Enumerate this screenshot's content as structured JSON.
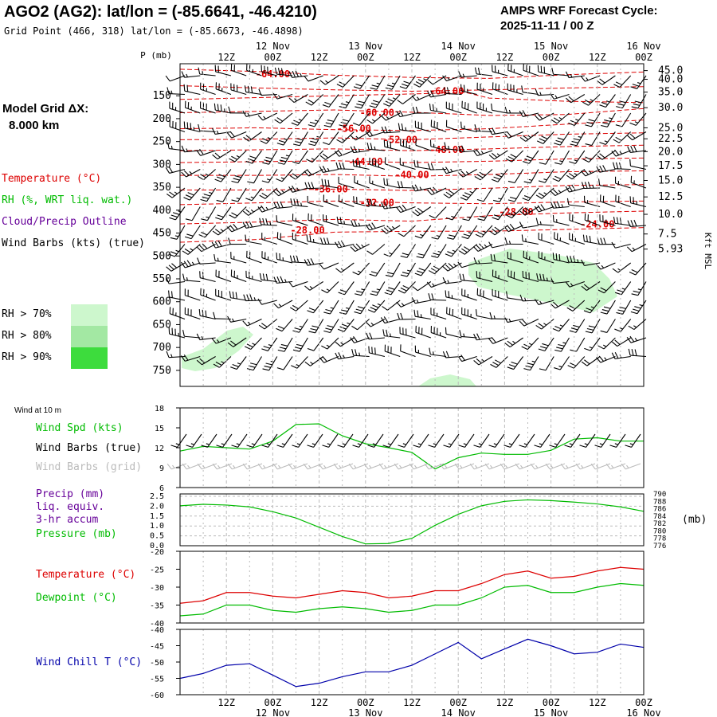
{
  "header": {
    "station": "AGO2 (AG2):  lat/lon = (-85.6641, -46.4210)",
    "grid_point": "Grid Point (466, 318) lat/lon = (-85.6673, -46.4898)",
    "cycle_line1": "AMPS WRF Forecast Cycle:",
    "cycle_line2": "2025-11-11 / 00  Z",
    "model_grid_label": "Model Grid ΔX:",
    "model_grid_value": "8.000 km"
  },
  "legend": {
    "temperature": "Temperature (°C)",
    "rh": "RH (%, WRT liq. wat.)",
    "cloud": "Cloud/Precip Outline",
    "wind_barbs": "Wind Barbs (kts) (true)",
    "rh70": "RH > 70%",
    "rh80": "RH > 80%",
    "rh90": "RH > 90%",
    "rh_colors": [
      "#cdf7cd",
      "#a3e8a3",
      "#3ddc3d"
    ]
  },
  "colors": {
    "temperature": "#dd0000",
    "dewpoint": "#00bb00",
    "wind_speed": "#00bb00",
    "pressure": "#00bb00",
    "precip": "#660099",
    "wind_chill": "#0000aa",
    "grid_barbs": "#bbbbbb",
    "rh_fill": "#cdf7cd"
  },
  "time_axis": {
    "top_dates": [
      "12 Nov",
      "13 Nov",
      "14 Nov",
      "15 Nov",
      "16 Nov"
    ],
    "top_hours": [
      "12Z",
      "00Z",
      "12Z",
      "00Z",
      "12Z",
      "00Z",
      "12Z",
      "00Z",
      "12Z",
      "00Z"
    ],
    "bottom_hours": [
      "12Z",
      "00Z",
      "12Z",
      "00Z",
      "12Z",
      "00Z",
      "12Z",
      "00Z",
      "12Z",
      "00Z"
    ],
    "bottom_dates": [
      "12 Nov",
      "13 Nov",
      "14 Nov",
      "15 Nov",
      "16 Nov"
    ]
  },
  "chart_data": [
    {
      "type": "heatmap",
      "panel": "cross-section",
      "ylabel": "P (mb)",
      "right_axis_label": "Kft MSL",
      "pressure_levels": [
        150,
        200,
        250,
        300,
        350,
        400,
        450,
        500,
        550,
        600,
        650,
        700,
        750
      ],
      "height_ticks": [
        "45.0",
        "40.0",
        "35.0",
        "30.0",
        "25.0",
        "22.5",
        "20.0",
        "17.5",
        "15.0",
        "12.5",
        "10.0",
        "7.5",
        "5.93"
      ],
      "height_tick_pressures": [
        95,
        114,
        142,
        176,
        220,
        244,
        272,
        303,
        335,
        371,
        409,
        452,
        485
      ],
      "ylim": [
        80,
        785
      ],
      "xlim_hours": [
        0,
        120
      ],
      "temperature_contours": [
        {
          "label": "-64.00",
          "x": 24,
          "p": 103
        },
        {
          "label": "-64.00",
          "x": 69,
          "p": 140
        },
        {
          "label": "-60.00",
          "x": 51,
          "p": 187
        },
        {
          "label": "-56.00",
          "x": 45,
          "p": 222
        },
        {
          "label": "-52.00",
          "x": 57,
          "p": 246
        },
        {
          "label": "-48.00",
          "x": 69,
          "p": 268
        },
        {
          "label": "-44.00",
          "x": 48,
          "p": 294
        },
        {
          "label": "-40.00",
          "x": 60,
          "p": 323
        },
        {
          "label": "-36.00",
          "x": 39,
          "p": 354
        },
        {
          "label": "-32.00",
          "x": 51,
          "p": 384
        },
        {
          "label": "-28.00",
          "x": 87,
          "p": 404
        },
        {
          "label": "-28.00",
          "x": 33,
          "p": 444
        },
        {
          "label": "-24.00",
          "x": 108,
          "p": 431
        }
      ]
    },
    {
      "type": "line",
      "panel": "wind",
      "title": "Wind at 10 m",
      "ylabel": "Wind Spd (kts)",
      "label_barbs_true": "Wind Barbs (true)",
      "label_barbs_grid": "Wind Barbs (grid)",
      "y_ticks": [
        6,
        9,
        12,
        15,
        18
      ],
      "ylim": [
        6,
        18
      ],
      "x": [
        0,
        6,
        12,
        18,
        24,
        30,
        36,
        42,
        48,
        54,
        60,
        66,
        72,
        78,
        84,
        90,
        96,
        102,
        108,
        114,
        120
      ],
      "series": [
        {
          "name": "Wind Spd (kts)",
          "values": [
            11.5,
            12.2,
            12.0,
            11.8,
            13.0,
            15.5,
            15.6,
            13.8,
            12.6,
            12.0,
            11.3,
            8.8,
            10.5,
            11.2,
            11.0,
            11.0,
            11.6,
            13.3,
            13.5,
            13.0,
            13.0
          ]
        }
      ]
    },
    {
      "type": "line",
      "panel": "precip-pressure",
      "label_precip": "Precip (mm)",
      "label_precip2": "liq. equiv.",
      "label_precip3": "3-hr accum",
      "label_pressure": "Pressure (mb)",
      "right_unit": "(mb)",
      "left_ticks": [
        "0.0",
        "0.5",
        "1.0",
        "1.5",
        "2.0",
        "2.5"
      ],
      "right_ticks": [
        "776",
        "778",
        "780",
        "782",
        "784",
        "786",
        "788",
        "790"
      ],
      "ylim_left": [
        0,
        2.5
      ],
      "ylim_right": [
        776,
        790
      ],
      "x": [
        0,
        6,
        12,
        18,
        24,
        30,
        36,
        42,
        48,
        54,
        60,
        66,
        72,
        78,
        84,
        90,
        96,
        102,
        108,
        114,
        120
      ],
      "series": [
        {
          "name": "Pressure (mb)",
          "values": [
            786.8,
            787.2,
            787.0,
            786.5,
            785.2,
            783.5,
            781.0,
            778.5,
            776.5,
            776.6,
            778.0,
            781.5,
            784.5,
            786.8,
            788.0,
            788.4,
            788.2,
            787.8,
            787.3,
            786.5,
            785.3
          ]
        }
      ]
    },
    {
      "type": "line",
      "panel": "temperature",
      "label_temperature": "Temperature (°C)",
      "label_dewpoint": "Dewpoint (°C)",
      "y_ticks": [
        -40,
        -35,
        -30,
        -25,
        -20
      ],
      "ylim": [
        -40,
        -20
      ],
      "x": [
        0,
        6,
        12,
        18,
        24,
        30,
        36,
        42,
        48,
        54,
        60,
        66,
        72,
        78,
        84,
        90,
        96,
        102,
        108,
        114,
        120
      ],
      "series": [
        {
          "name": "Temperature (°C)",
          "values": [
            -34.5,
            -33.8,
            -31.5,
            -31.5,
            -32.5,
            -33.0,
            -32.0,
            -31.0,
            -31.5,
            -33.0,
            -32.5,
            -31.0,
            -31.0,
            -29.0,
            -26.5,
            -25.5,
            -27.5,
            -27.0,
            -25.5,
            -24.5,
            -25.0
          ]
        },
        {
          "name": "Dewpoint (°C)",
          "values": [
            -38.0,
            -37.5,
            -35.0,
            -35.0,
            -36.5,
            -37.0,
            -36.0,
            -35.5,
            -36.0,
            -37.0,
            -36.5,
            -35.0,
            -35.0,
            -33.0,
            -30.0,
            -29.5,
            -31.5,
            -31.5,
            -30.0,
            -29.0,
            -29.5
          ]
        }
      ]
    },
    {
      "type": "line",
      "panel": "wind-chill",
      "label": "Wind Chill T (°C)",
      "y_ticks": [
        -60,
        -55,
        -50,
        -45,
        -40
      ],
      "ylim": [
        -60,
        -40
      ],
      "x": [
        0,
        6,
        12,
        18,
        24,
        30,
        36,
        42,
        48,
        54,
        60,
        66,
        72,
        78,
        84,
        90,
        96,
        102,
        108,
        114,
        120
      ],
      "series": [
        {
          "name": "Wind Chill T (°C)",
          "values": [
            -55.0,
            -53.5,
            -51.0,
            -50.5,
            -54.0,
            -57.5,
            -56.5,
            -54.5,
            -53.0,
            -53.0,
            -51.0,
            -47.5,
            -44.0,
            -49.0,
            -46.0,
            -43.0,
            -45.0,
            -47.5,
            -47.0,
            -44.5,
            -45.5
          ]
        }
      ]
    }
  ]
}
